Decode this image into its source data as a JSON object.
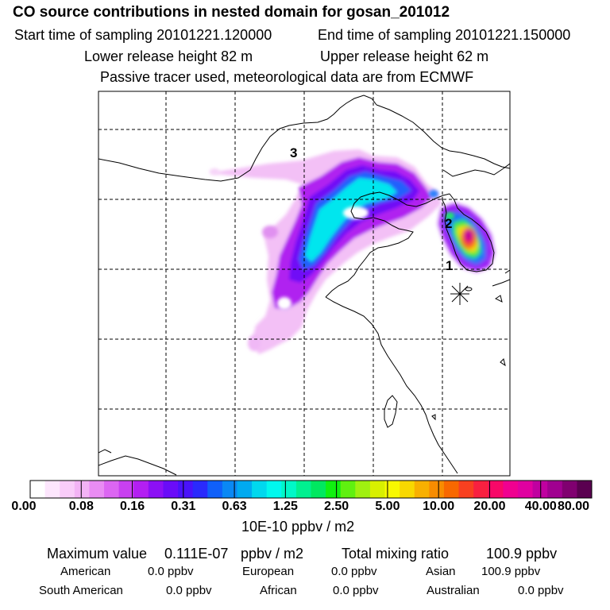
{
  "header": {
    "title": "CO  source contributions in nested domain for gosan_201012",
    "start_label": "Start time of sampling 20101221.120000",
    "end_label": "End time of sampling 20101221.150000",
    "lower_label": "Lower release height   82 m",
    "upper_label": "Upper release height   62 m",
    "note": "Passive tracer used, meteorological data are from ECMWF"
  },
  "map": {
    "site_labels": [
      "1",
      "2",
      "3"
    ],
    "receptor_icon": "star-marker-icon"
  },
  "colorbar": {
    "ticks": [
      "0.00",
      "0.08",
      "0.16",
      "0.31",
      "0.63",
      "1.25",
      "2.50",
      "5.00",
      "10.00",
      "20.00",
      "40.00",
      "80.00"
    ],
    "units": "10E-10 ppbv / m2",
    "colors": [
      "#ffffff",
      "#fde6fd",
      "#f9ccf9",
      "#f3b3f5",
      "#e98cf3",
      "#dc66f2",
      "#c840f0",
      "#b31ff2",
      "#8c10f5",
      "#6a0cf8",
      "#4a12fa",
      "#2a2afc",
      "#1060fa",
      "#0a88f4",
      "#00aaf0",
      "#00d8ee",
      "#00f8ee",
      "#00f8c8",
      "#00f090",
      "#00e860",
      "#10f010",
      "#60f010",
      "#a0f010",
      "#d8f000",
      "#f8f800",
      "#f8d800",
      "#f8b000",
      "#f88c00",
      "#f86800",
      "#f84020",
      "#f82040",
      "#f80868",
      "#f00090",
      "#e000a0",
      "#c000a0",
      "#a00090",
      "#800070",
      "#5a0050"
    ]
  },
  "stats": {
    "max_label": "Maximum value",
    "max_value": "0.111E-07",
    "max_unit": "ppbv / m2",
    "total_label": "Total mixing ratio",
    "total_value": "100.9 ppbv",
    "row2": [
      {
        "label": "American",
        "value": "0.0 ppbv"
      },
      {
        "label": "European",
        "value": "0.0 ppbv"
      },
      {
        "label": "Asian",
        "value": "100.9 ppbv"
      }
    ],
    "row3": [
      {
        "label": "South American",
        "value": "0.0 ppbv"
      },
      {
        "label": "African",
        "value": "0.0 ppbv"
      },
      {
        "label": "Australian",
        "value": "0.0 ppbv"
      }
    ]
  }
}
